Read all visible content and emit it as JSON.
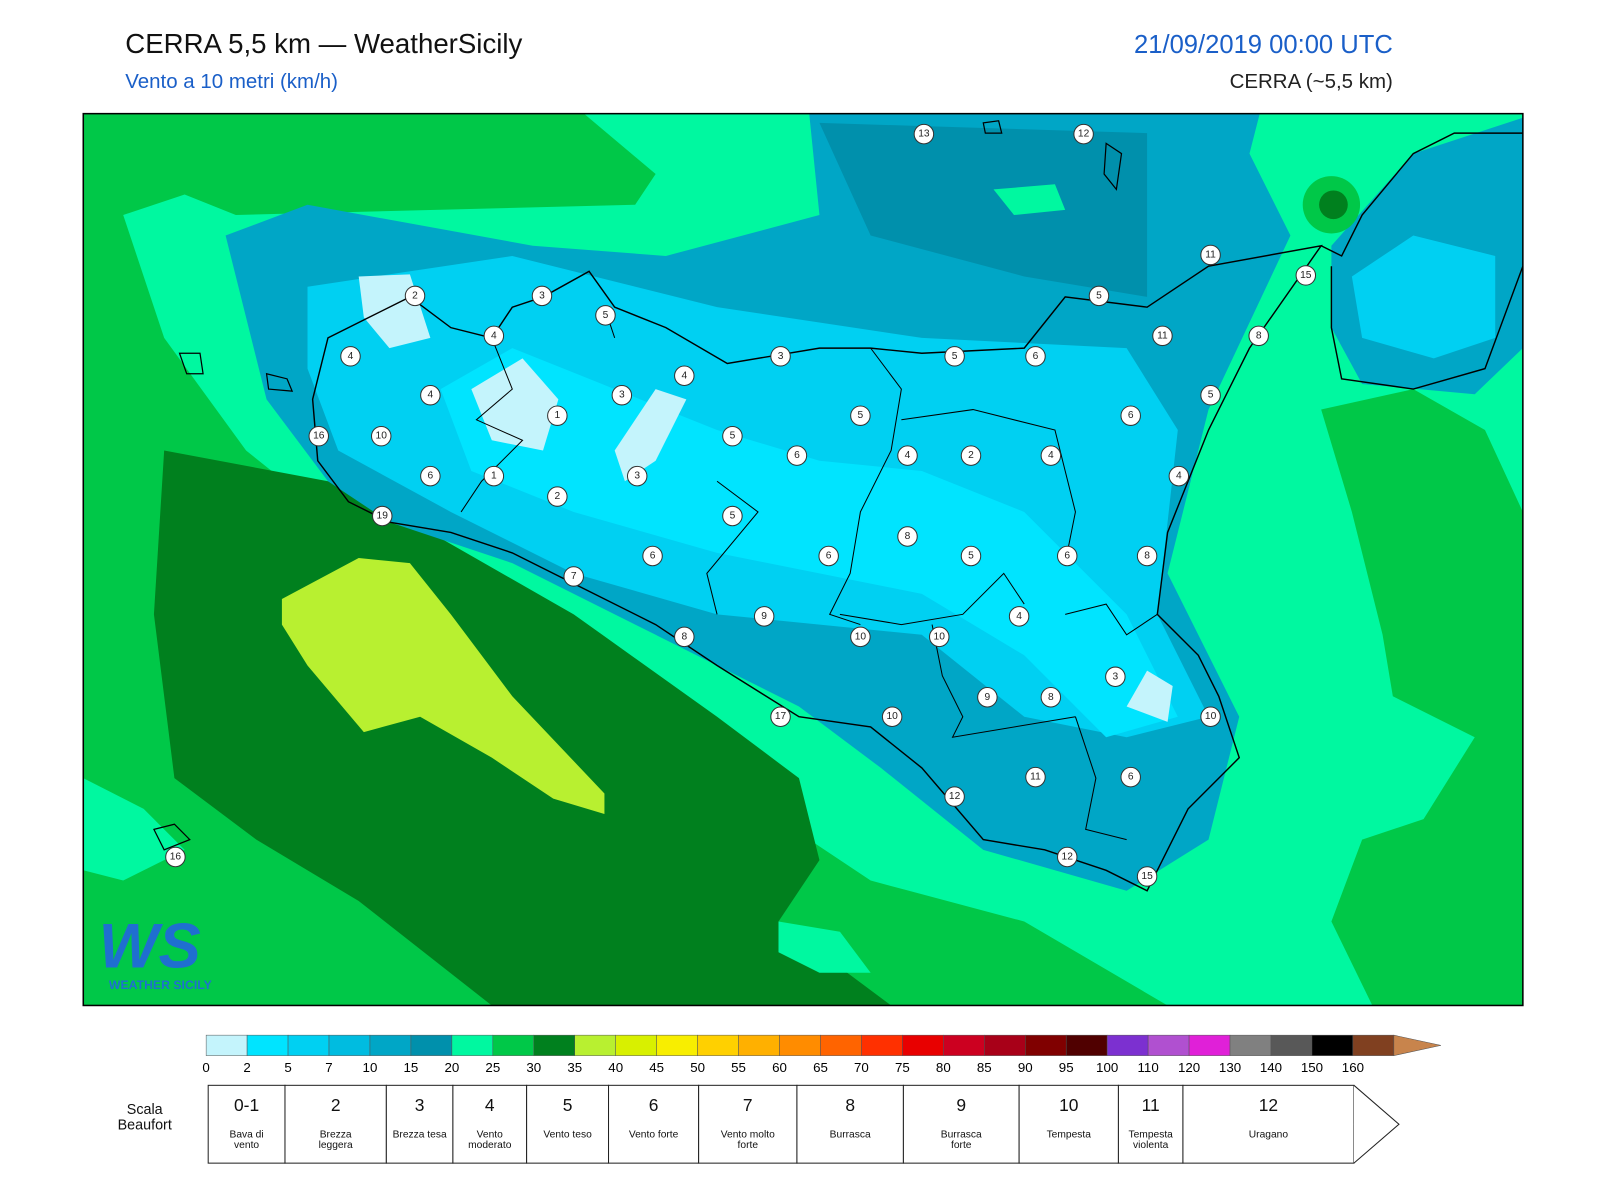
{
  "header": {
    "title": "CERRA 5,5 km — WeatherSicily",
    "subtitle": "Vento a 10 metri (km/h)",
    "datetime": "21/09/2019 00:00 UTC",
    "model": "CERRA (~5,5 km)"
  },
  "map": {
    "stations": [
      13,
      12,
      11,
      15,
      2,
      3,
      5,
      4,
      5,
      11,
      8,
      4,
      3,
      5,
      6,
      4,
      4,
      3,
      5,
      1,
      5,
      6,
      16,
      10,
      5,
      6,
      4,
      2,
      4,
      6,
      1,
      3,
      4,
      2,
      5,
      19,
      8,
      6,
      6,
      5,
      6,
      8,
      7,
      9,
      4,
      8,
      10,
      10,
      3,
      9,
      8,
      17,
      10,
      10,
      11,
      6,
      12,
      16,
      12,
      15
    ]
  },
  "logo": {
    "mark": "WS",
    "name": "WEATHER SICILY"
  },
  "colorbar": {
    "ticks": [
      0,
      2,
      5,
      7,
      10,
      15,
      20,
      25,
      30,
      35,
      40,
      45,
      50,
      55,
      60,
      65,
      70,
      75,
      80,
      85,
      90,
      95,
      100,
      110,
      120,
      130,
      140,
      150,
      160
    ],
    "colors": [
      "#c4f4fc",
      "#00e4ff",
      "#00d0f2",
      "#00bce0",
      "#00a6c6",
      "#0090ac",
      "#00f8a0",
      "#00c848",
      "#00801e",
      "#b8f030",
      "#d8f000",
      "#f8ee00",
      "#ffd000",
      "#ffb000",
      "#ff8c00",
      "#ff6400",
      "#ff3000",
      "#e80000",
      "#cc0020",
      "#a80018",
      "#800000",
      "#500000",
      "#7c30d0",
      "#b050d0",
      "#e020d8",
      "#808080",
      "#585858",
      "#000000",
      "#804020"
    ],
    "over_color": "#c8844c"
  },
  "beaufort": {
    "label": "Scala Beaufort",
    "classes": [
      {
        "force": "0-1",
        "description": "Bava di vento"
      },
      {
        "force": "2",
        "description": "Brezza leggera"
      },
      {
        "force": "3",
        "description": "Brezza tesa"
      },
      {
        "force": "4",
        "description": "Vento moderato"
      },
      {
        "force": "5",
        "description": "Vento teso"
      },
      {
        "force": "6",
        "description": "Vento forte"
      },
      {
        "force": "7",
        "description": "Vento molto forte"
      },
      {
        "force": "8",
        "description": "Burrasca"
      },
      {
        "force": "9",
        "description": "Burrasca forte"
      },
      {
        "force": "10",
        "description": "Tempesta"
      },
      {
        "force": "11",
        "description": "Tempesta violenta"
      },
      {
        "force": "12",
        "description": "Uragano"
      }
    ]
  }
}
